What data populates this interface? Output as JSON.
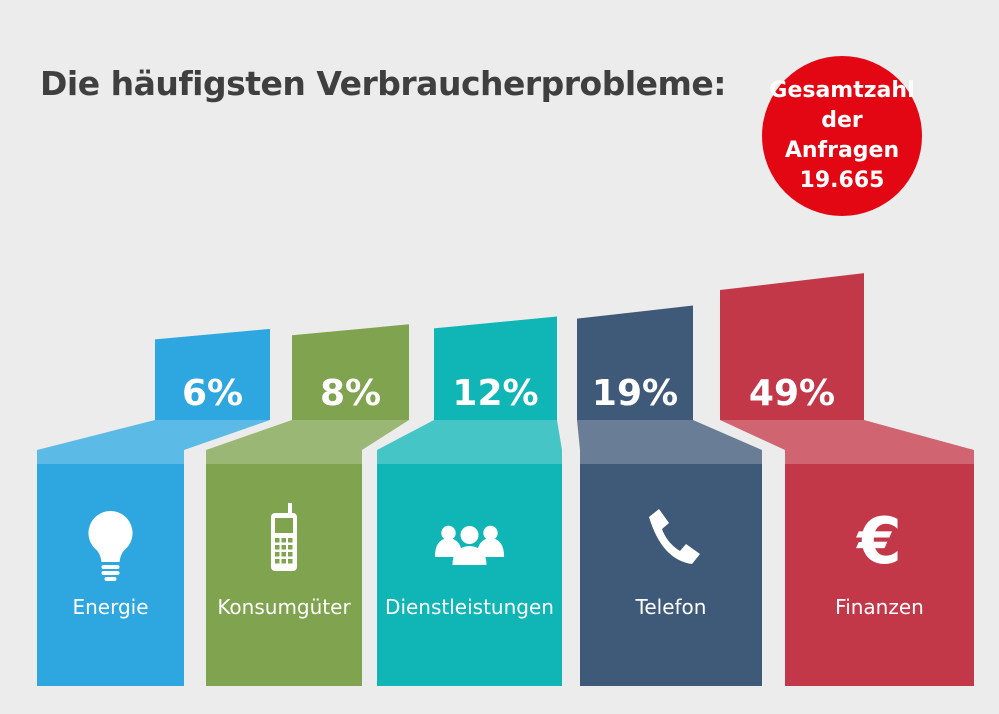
{
  "title": "Die häufigsten Verbraucherprobleme:",
  "total": {
    "line1": "Gesamtzahl",
    "line2": "der Anfragen",
    "value": "19.665",
    "color": "#e30613"
  },
  "chart_data": {
    "type": "bar",
    "title": "Die häufigsten Verbraucherprobleme:",
    "categories": [
      "Energie",
      "Konsumgüter",
      "Dienstleistungen",
      "Telefon",
      "Finanzen"
    ],
    "values": [
      6,
      8,
      12,
      19,
      49
    ],
    "value_labels": [
      "6%",
      "8%",
      "12%",
      "19%",
      "49%"
    ],
    "unit": "%",
    "colors": [
      "#2ea7e0",
      "#7fa34e",
      "#10b5b5",
      "#3f5a78",
      "#c33848"
    ],
    "icons": [
      "lightbulb-icon",
      "mobile-phone-icon",
      "people-icon",
      "telephone-handset-icon",
      "euro-icon"
    ]
  }
}
